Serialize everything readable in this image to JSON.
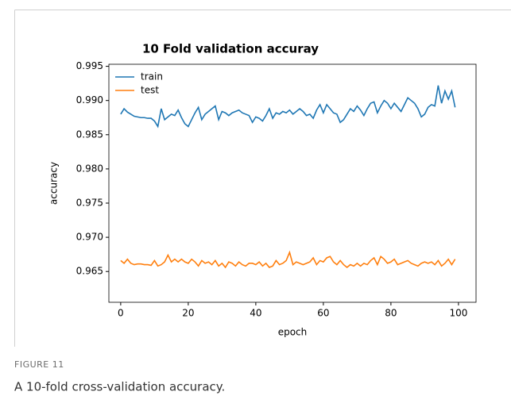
{
  "chart_data": {
    "type": "line",
    "title": "10 Fold validation accuray",
    "xlabel": "epoch",
    "ylabel": "accuracy",
    "x": [
      0,
      1,
      2,
      3,
      4,
      5,
      6,
      7,
      8,
      9,
      10,
      11,
      12,
      13,
      14,
      15,
      16,
      17,
      18,
      19,
      20,
      21,
      22,
      23,
      24,
      25,
      26,
      27,
      28,
      29,
      30,
      31,
      32,
      33,
      34,
      35,
      36,
      37,
      38,
      39,
      40,
      41,
      42,
      43,
      44,
      45,
      46,
      47,
      48,
      49,
      50,
      51,
      52,
      53,
      54,
      55,
      56,
      57,
      58,
      59,
      60,
      61,
      62,
      63,
      64,
      65,
      66,
      67,
      68,
      69,
      70,
      71,
      72,
      73,
      74,
      75,
      76,
      77,
      78,
      79,
      80,
      81,
      82,
      83,
      84,
      85,
      86,
      87,
      88,
      89,
      90,
      91,
      92,
      93,
      94,
      95,
      96,
      97,
      98,
      99
    ],
    "series": [
      {
        "name": "train",
        "color": "#1f77b4",
        "values": [
          0.988,
          0.9888,
          0.9883,
          0.988,
          0.9877,
          0.9876,
          0.9875,
          0.9875,
          0.9874,
          0.9874,
          0.987,
          0.9862,
          0.9888,
          0.9872,
          0.9876,
          0.988,
          0.9878,
          0.9886,
          0.9875,
          0.9866,
          0.9862,
          0.9872,
          0.9882,
          0.989,
          0.9872,
          0.988,
          0.9884,
          0.9888,
          0.9892,
          0.9872,
          0.9884,
          0.9882,
          0.9878,
          0.9882,
          0.9884,
          0.9886,
          0.9882,
          0.988,
          0.9878,
          0.9868,
          0.9876,
          0.9874,
          0.987,
          0.9878,
          0.9888,
          0.9874,
          0.9882,
          0.988,
          0.9884,
          0.9882,
          0.9886,
          0.988,
          0.9884,
          0.9888,
          0.9884,
          0.9878,
          0.988,
          0.9874,
          0.9886,
          0.9894,
          0.9882,
          0.9894,
          0.9888,
          0.9882,
          0.988,
          0.9868,
          0.9872,
          0.988,
          0.9888,
          0.9884,
          0.9892,
          0.9886,
          0.9878,
          0.9888,
          0.9896,
          0.9898,
          0.9882,
          0.9892,
          0.99,
          0.9896,
          0.9888,
          0.9896,
          0.989,
          0.9884,
          0.9894,
          0.9904,
          0.99,
          0.9896,
          0.9888,
          0.9876,
          0.988,
          0.989,
          0.9894,
          0.9892,
          0.9922,
          0.9896,
          0.9914,
          0.9902,
          0.9914,
          0.989
        ]
      },
      {
        "name": "test",
        "color": "#ff7f0e",
        "values": [
          0.9666,
          0.9662,
          0.9668,
          0.9662,
          0.966,
          0.9661,
          0.9661,
          0.966,
          0.966,
          0.9659,
          0.9666,
          0.9658,
          0.966,
          0.9664,
          0.9674,
          0.9664,
          0.9668,
          0.9664,
          0.9668,
          0.9664,
          0.9662,
          0.9668,
          0.9664,
          0.9658,
          0.9666,
          0.9662,
          0.9664,
          0.966,
          0.9666,
          0.9658,
          0.9662,
          0.9656,
          0.9664,
          0.9662,
          0.9658,
          0.9664,
          0.966,
          0.9658,
          0.9662,
          0.9662,
          0.966,
          0.9664,
          0.9658,
          0.9662,
          0.9656,
          0.9658,
          0.9666,
          0.966,
          0.9662,
          0.9666,
          0.9678,
          0.966,
          0.9664,
          0.9662,
          0.966,
          0.9662,
          0.9664,
          0.967,
          0.966,
          0.9666,
          0.9664,
          0.967,
          0.9672,
          0.9664,
          0.966,
          0.9666,
          0.966,
          0.9656,
          0.966,
          0.9658,
          0.9662,
          0.9658,
          0.9662,
          0.966,
          0.9666,
          0.967,
          0.966,
          0.9672,
          0.9668,
          0.9662,
          0.9664,
          0.9668,
          0.966,
          0.9662,
          0.9664,
          0.9666,
          0.9662,
          0.966,
          0.9658,
          0.9662,
          0.9664,
          0.9662,
          0.9664,
          0.966,
          0.9666,
          0.9658,
          0.9662,
          0.9668,
          0.966,
          0.9668
        ]
      }
    ],
    "xlim": [
      -3.5,
      105.2
    ],
    "xticks": [
      0,
      20,
      40,
      60,
      80,
      100
    ],
    "ylim": [
      0.9605,
      0.9953
    ],
    "yticks": [
      0.965,
      {
        "value": 0.97,
        "label": "0.970"
      },
      0.975,
      {
        "value": 0.98,
        "label": "0.980"
      },
      0.985,
      {
        "value": 0.99,
        "label": "0.990"
      },
      0.995
    ],
    "legend": "upper left"
  },
  "figure": {
    "label": "FIGURE 11",
    "caption": "A 10-fold cross-validation accuracy."
  }
}
